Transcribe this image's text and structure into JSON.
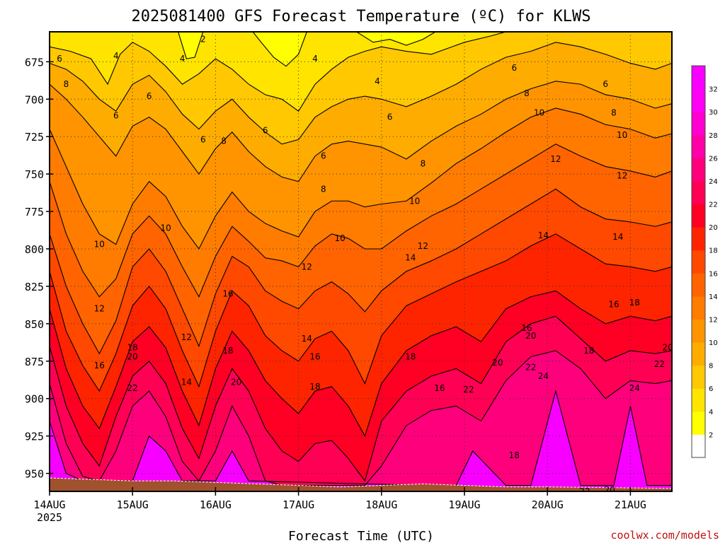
{
  "chart_data": {
    "type": "heatmap",
    "title": "2025081400 GFS Forecast Temperature (ºC) for KLWS",
    "xlabel": "Forecast Time (UTC)",
    "credit": "coolwx.com/models",
    "x_ticks": [
      {
        "label": "14AUG",
        "sub": "2025",
        "day": 0
      },
      {
        "label": "15AUG",
        "day": 1
      },
      {
        "label": "16AUG",
        "day": 2
      },
      {
        "label": "17AUG",
        "day": 3
      },
      {
        "label": "18AUG",
        "day": 4
      },
      {
        "label": "19AUG",
        "day": 5
      },
      {
        "label": "20AUG",
        "day": 6
      },
      {
        "label": "21AUG",
        "day": 7
      }
    ],
    "x_range_days": [
      0,
      7.5
    ],
    "y_range_hpa": [
      655,
      962
    ],
    "y_ticks": [
      675,
      700,
      725,
      750,
      775,
      800,
      825,
      850,
      875,
      900,
      925,
      950
    ],
    "grid": true,
    "colorbar": {
      "labels": [
        2,
        4,
        6,
        8,
        10,
        12,
        14,
        16,
        18,
        20,
        22,
        24,
        26,
        28,
        30,
        32
      ],
      "colors": [
        "#ffffff",
        "#ffff00",
        "#ffe400",
        "#ffc800",
        "#ffac00",
        "#ff9400",
        "#ff7c00",
        "#ff6400",
        "#ff4800",
        "#ff2400",
        "#ff0024",
        "#ff0054",
        "#ff007c",
        "#ff00a8",
        "#ff00d0",
        "#ff00f4",
        "#f800ff"
      ]
    },
    "surface_hpa": [
      953,
      954,
      955,
      955,
      956,
      957,
      958,
      959,
      958,
      957,
      958,
      959,
      959,
      960
    ],
    "surface_times_days": [
      0,
      0.5,
      1,
      1.5,
      2,
      2.5,
      3,
      3.5,
      4,
      4.5,
      5,
      5.5,
      6,
      7.5
    ],
    "series": [
      {
        "name": "2",
        "x": [
          1.55,
          1.65,
          1.75,
          1.85
        ],
        "y": [
          655,
          673,
          672,
          655
        ]
      },
      {
        "name": "2",
        "x": [
          2.45,
          2.55,
          2.7,
          2.85,
          3.0,
          3.1
        ],
        "y": [
          655,
          662,
          672,
          678,
          670,
          655
        ]
      },
      {
        "name": "2",
        "x": [
          3.7,
          3.9,
          4.1,
          4.3,
          4.5,
          4.65
        ],
        "y": [
          655,
          662,
          660,
          664,
          660,
          655
        ]
      },
      {
        "name": "4",
        "x": [
          0.0,
          0.25,
          0.5,
          0.7,
          0.85,
          1.0,
          1.2,
          1.4,
          1.6,
          1.8,
          2.0,
          2.2,
          2.4,
          2.6,
          2.8,
          3.0,
          3.2,
          3.4,
          3.6,
          3.8,
          4.0,
          4.3,
          4.6,
          5.0,
          5.3,
          5.5
        ],
        "y": [
          665,
          668,
          673,
          690,
          670,
          662,
          668,
          678,
          690,
          683,
          673,
          680,
          690,
          697,
          700,
          708,
          690,
          680,
          672,
          668,
          665,
          668,
          670,
          662,
          658,
          655
        ]
      },
      {
        "name": "6",
        "x": [
          0.0,
          0.2,
          0.4,
          0.6,
          0.8,
          1.0,
          1.2,
          1.4,
          1.6,
          1.8,
          2.0,
          2.2,
          2.4,
          2.6,
          2.8,
          3.0,
          3.2,
          3.4,
          3.6,
          3.8,
          4.0,
          4.3,
          4.6,
          4.9,
          5.2,
          5.5,
          5.8,
          6.1,
          6.4,
          6.7,
          7.0,
          7.3,
          7.5
        ],
        "y": [
          676,
          680,
          688,
          700,
          708,
          690,
          684,
          695,
          710,
          720,
          708,
          700,
          712,
          722,
          730,
          727,
          712,
          705,
          700,
          698,
          700,
          705,
          698,
          690,
          680,
          672,
          668,
          662,
          665,
          670,
          676,
          680,
          676
        ]
      },
      {
        "name": "8",
        "x": [
          0.0,
          0.2,
          0.4,
          0.6,
          0.8,
          1.0,
          1.2,
          1.4,
          1.6,
          1.8,
          2.0,
          2.2,
          2.4,
          2.6,
          2.8,
          3.0,
          3.2,
          3.4,
          3.6,
          3.8,
          4.0,
          4.3,
          4.6,
          4.9,
          5.2,
          5.5,
          5.8,
          6.1,
          6.4,
          6.7,
          7.0,
          7.3,
          7.5
        ],
        "y": [
          690,
          700,
          712,
          725,
          738,
          718,
          712,
          720,
          735,
          750,
          733,
          722,
          735,
          745,
          752,
          755,
          738,
          730,
          728,
          730,
          732,
          740,
          728,
          718,
          710,
          700,
          693,
          688,
          690,
          697,
          700,
          706,
          703
        ]
      },
      {
        "name": "10",
        "x": [
          0.0,
          0.2,
          0.4,
          0.6,
          0.8,
          1.0,
          1.2,
          1.4,
          1.6,
          1.8,
          2.0,
          2.2,
          2.4,
          2.6,
          2.8,
          3.0,
          3.2,
          3.4,
          3.6,
          3.8,
          4.0,
          4.3,
          4.6,
          4.9,
          5.2,
          5.5,
          5.8,
          6.1,
          6.4,
          6.7,
          7.0,
          7.3,
          7.5
        ],
        "y": [
          720,
          745,
          770,
          790,
          797,
          770,
          755,
          765,
          785,
          800,
          778,
          762,
          775,
          783,
          788,
          792,
          775,
          768,
          768,
          772,
          770,
          768,
          756,
          743,
          733,
          722,
          712,
          706,
          710,
          717,
          720,
          726,
          723
        ]
      },
      {
        "name": "12",
        "x": [
          0.0,
          0.2,
          0.4,
          0.6,
          0.8,
          1.0,
          1.2,
          1.4,
          1.6,
          1.8,
          2.0,
          2.2,
          2.4,
          2.6,
          2.8,
          3.0,
          3.2,
          3.4,
          3.6,
          3.8,
          4.0,
          4.3,
          4.6,
          4.9,
          5.2,
          5.5,
          5.8,
          6.1,
          6.4,
          6.7,
          7.0,
          7.3,
          7.5
        ],
        "y": [
          755,
          790,
          815,
          832,
          820,
          790,
          778,
          790,
          812,
          832,
          805,
          785,
          795,
          806,
          808,
          812,
          798,
          790,
          793,
          800,
          800,
          788,
          778,
          770,
          760,
          750,
          740,
          730,
          738,
          745,
          748,
          752,
          748
        ]
      },
      {
        "name": "14",
        "x": [
          0.0,
          0.2,
          0.4,
          0.6,
          0.8,
          1.0,
          1.2,
          1.4,
          1.6,
          1.8,
          2.0,
          2.2,
          2.4,
          2.6,
          2.8,
          3.0,
          3.2,
          3.4,
          3.6,
          3.8,
          4.0,
          4.3,
          4.6,
          4.9,
          5.2,
          5.5,
          5.8,
          6.1,
          6.4,
          6.7,
          7.0,
          7.3,
          7.5
        ],
        "y": [
          790,
          825,
          850,
          870,
          848,
          812,
          800,
          815,
          840,
          865,
          830,
          805,
          812,
          828,
          835,
          840,
          828,
          822,
          830,
          842,
          828,
          815,
          808,
          800,
          790,
          780,
          770,
          760,
          772,
          780,
          782,
          785,
          782
        ]
      },
      {
        "name": "16",
        "x": [
          0.0,
          0.2,
          0.4,
          0.6,
          0.8,
          1.0,
          1.2,
          1.4,
          1.6,
          1.8,
          2.0,
          2.2,
          2.4,
          2.6,
          2.8,
          3.0,
          3.2,
          3.4,
          3.6,
          3.8,
          4.0,
          4.3,
          4.6,
          4.9,
          5.2,
          5.5,
          5.8,
          6.1,
          6.4,
          6.7,
          7.0,
          7.3,
          7.5
        ],
        "y": [
          815,
          855,
          878,
          895,
          870,
          838,
          825,
          840,
          868,
          892,
          855,
          828,
          838,
          858,
          868,
          875,
          860,
          855,
          868,
          890,
          858,
          838,
          830,
          822,
          815,
          808,
          798,
          790,
          800,
          810,
          812,
          815,
          812
        ]
      },
      {
        "name": "18",
        "x": [
          0.0,
          0.2,
          0.4,
          0.6,
          0.8,
          1.0,
          1.2,
          1.4,
          1.6,
          1.8,
          2.0,
          2.2,
          2.4,
          2.6,
          2.8,
          3.0,
          3.2,
          3.4,
          3.6,
          3.8,
          4.0,
          4.3,
          4.6,
          4.9,
          5.2,
          5.5,
          5.8,
          6.1,
          6.4,
          6.7,
          7.0,
          7.3,
          7.5
        ],
        "y": [
          840,
          880,
          905,
          920,
          892,
          862,
          852,
          866,
          895,
          918,
          880,
          855,
          868,
          888,
          900,
          910,
          895,
          892,
          905,
          925,
          890,
          868,
          858,
          852,
          862,
          840,
          832,
          828,
          840,
          850,
          845,
          848,
          845
        ]
      },
      {
        "name": "20",
        "x": [
          0.0,
          0.2,
          0.4,
          0.6,
          0.8,
          1.0,
          1.2,
          1.4,
          1.6,
          1.8,
          2.0,
          2.2,
          2.4,
          2.6,
          2.8,
          3.0,
          3.2,
          3.4,
          3.6,
          3.8,
          4.0,
          4.3,
          4.6,
          4.9,
          5.2,
          5.5,
          5.8,
          6.1,
          6.4,
          6.7,
          7.0,
          7.3,
          7.5
        ],
        "y": [
          865,
          905,
          930,
          945,
          912,
          885,
          875,
          890,
          920,
          940,
          905,
          880,
          895,
          920,
          935,
          942,
          930,
          928,
          940,
          955,
          915,
          895,
          885,
          880,
          890,
          862,
          850,
          845,
          860,
          875,
          868,
          870,
          868
        ]
      },
      {
        "name": "22",
        "x": [
          0.0,
          0.2,
          0.4,
          0.6,
          0.8,
          1.0,
          1.2,
          1.4,
          1.6,
          1.8,
          2.0,
          2.2,
          2.4,
          2.6,
          2.8,
          3.0,
          3.2,
          3.4,
          3.6,
          3.8,
          4.0,
          4.3,
          4.6,
          4.9,
          5.2,
          5.5,
          5.8,
          6.1,
          6.4,
          6.7,
          7.0,
          7.3,
          7.5
        ],
        "y": [
          890,
          930,
          952,
          955,
          935,
          905,
          895,
          912,
          942,
          955,
          935,
          905,
          925,
          955,
          958,
          958,
          958,
          958,
          958,
          958,
          945,
          918,
          908,
          905,
          915,
          888,
          872,
          868,
          880,
          900,
          888,
          890,
          888
        ]
      },
      {
        "name": "24",
        "x": [
          0.0,
          0.2,
          0.4,
          0.6,
          1.0,
          1.2,
          1.4,
          1.6,
          2.0,
          2.2,
          2.4,
          4.5,
          4.9,
          5.1,
          5.5,
          5.8,
          6.1,
          6.4,
          6.8,
          7.0,
          7.2,
          7.5
        ],
        "y": [
          915,
          950,
          955,
          955,
          955,
          925,
          935,
          955,
          955,
          935,
          955,
          958,
          958,
          935,
          958,
          958,
          895,
          958,
          958,
          905,
          958,
          958
        ]
      }
    ],
    "contour_labels": [
      {
        "text": "2",
        "day": 1.85,
        "p": 660
      },
      {
        "text": "4",
        "day": 0.8,
        "p": 671
      },
      {
        "text": "4",
        "day": 1.6,
        "p": 673
      },
      {
        "text": "4",
        "day": 3.2,
        "p": 673
      },
      {
        "text": "4",
        "day": 3.95,
        "p": 688
      },
      {
        "text": "6",
        "day": 0.12,
        "p": 673
      },
      {
        "text": "6",
        "day": 0.8,
        "p": 711
      },
      {
        "text": "6",
        "day": 1.2,
        "p": 698
      },
      {
        "text": "6",
        "day": 1.85,
        "p": 727
      },
      {
        "text": "6",
        "day": 2.6,
        "p": 721
      },
      {
        "text": "6",
        "day": 3.3,
        "p": 738
      },
      {
        "text": "6",
        "day": 4.1,
        "p": 712
      },
      {
        "text": "6",
        "day": 5.6,
        "p": 679
      },
      {
        "text": "6",
        "day": 6.7,
        "p": 690
      },
      {
        "text": "8",
        "day": 0.2,
        "p": 690
      },
      {
        "text": "8",
        "day": 2.1,
        "p": 728
      },
      {
        "text": "8",
        "day": 3.3,
        "p": 760
      },
      {
        "text": "8",
        "day": 4.5,
        "p": 743
      },
      {
        "text": "8",
        "day": 5.75,
        "p": 696
      },
      {
        "text": "8",
        "day": 6.8,
        "p": 709
      },
      {
        "text": "10",
        "day": 0.6,
        "p": 797
      },
      {
        "text": "10",
        "day": 1.4,
        "p": 786
      },
      {
        "text": "10",
        "day": 3.5,
        "p": 793
      },
      {
        "text": "10",
        "day": 4.4,
        "p": 768
      },
      {
        "text": "10",
        "day": 5.9,
        "p": 709
      },
      {
        "text": "10",
        "day": 6.9,
        "p": 724
      },
      {
        "text": "12",
        "day": 0.6,
        "p": 840
      },
      {
        "text": "12",
        "day": 1.65,
        "p": 859
      },
      {
        "text": "12",
        "day": 3.1,
        "p": 812
      },
      {
        "text": "12",
        "day": 4.5,
        "p": 798
      },
      {
        "text": "12",
        "day": 6.1,
        "p": 740
      },
      {
        "text": "12",
        "day": 6.9,
        "p": 751
      },
      {
        "text": "14",
        "day": 1.65,
        "p": 889
      },
      {
        "text": "14",
        "day": 3.1,
        "p": 860
      },
      {
        "text": "14",
        "day": 4.35,
        "p": 806
      },
      {
        "text": "14",
        "day": 5.95,
        "p": 791
      },
      {
        "text": "14",
        "day": 6.85,
        "p": 792
      },
      {
        "text": "16",
        "day": 0.6,
        "p": 878
      },
      {
        "text": "16",
        "day": 2.15,
        "p": 830
      },
      {
        "text": "16",
        "day": 3.2,
        "p": 872
      },
      {
        "text": "16",
        "day": 4.7,
        "p": 893
      },
      {
        "text": "16",
        "day": 5.75,
        "p": 853
      },
      {
        "text": "16",
        "day": 6.8,
        "p": 837
      },
      {
        "text": "18",
        "day": 1.0,
        "p": 866
      },
      {
        "text": "18",
        "day": 2.15,
        "p": 868
      },
      {
        "text": "18",
        "day": 3.2,
        "p": 892
      },
      {
        "text": "18",
        "day": 4.35,
        "p": 872
      },
      {
        "text": "18",
        "day": 5.6,
        "p": 938
      },
      {
        "text": "18",
        "day": 6.5,
        "p": 868
      },
      {
        "text": "18",
        "day": 7.05,
        "p": 836
      },
      {
        "text": "20",
        "day": 1.0,
        "p": 872
      },
      {
        "text": "20",
        "day": 2.25,
        "p": 889
      },
      {
        "text": "20",
        "day": 5.4,
        "p": 876
      },
      {
        "text": "20",
        "day": 5.8,
        "p": 858
      },
      {
        "text": "20",
        "day": 6.75,
        "p": 961
      },
      {
        "text": "20",
        "day": 7.45,
        "p": 866
      },
      {
        "text": "22",
        "day": 1.0,
        "p": 893
      },
      {
        "text": "22",
        "day": 5.05,
        "p": 894
      },
      {
        "text": "22",
        "day": 5.8,
        "p": 879
      },
      {
        "text": "22",
        "day": 6.45,
        "p": 962
      },
      {
        "text": "22",
        "day": 7.35,
        "p": 877
      },
      {
        "text": "24",
        "day": 5.95,
        "p": 885
      },
      {
        "text": "24",
        "day": 7.05,
        "p": 893
      }
    ]
  }
}
